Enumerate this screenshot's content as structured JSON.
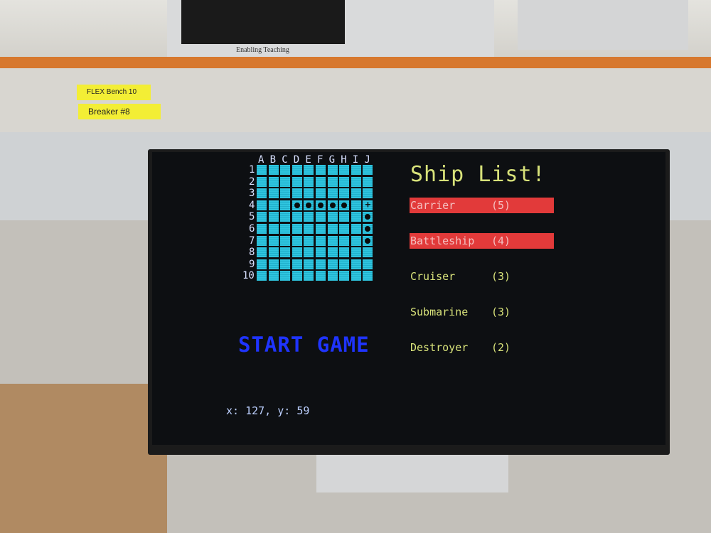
{
  "environment": {
    "shelf_labels": [
      "FLEX Bench 10",
      "Breaker #8"
    ],
    "oscilloscope_caption": "Enabling Teaching"
  },
  "game": {
    "grid": {
      "columns": [
        "A",
        "B",
        "C",
        "D",
        "E",
        "F",
        "G",
        "H",
        "I",
        "J"
      ],
      "rows": [
        "1",
        "2",
        "3",
        "4",
        "5",
        "6",
        "7",
        "8",
        "9",
        "10"
      ],
      "ship_cells": [
        "D4",
        "E4",
        "F4",
        "G4",
        "H4",
        "J5",
        "J6",
        "J7"
      ],
      "cursor_cell": "J4",
      "cell_color": "#2fc4de"
    },
    "ship_list": {
      "title": "Ship List!",
      "ships": [
        {
          "name": "Carrier",
          "size": "(5)",
          "placed": true
        },
        {
          "name": "Battleship",
          "size": "(4)",
          "placed": true
        },
        {
          "name": "Cruiser",
          "size": "(3)",
          "placed": false
        },
        {
          "name": "Submarine",
          "size": "(3)",
          "placed": false
        },
        {
          "name": "Destroyer",
          "size": "(2)",
          "placed": false
        }
      ],
      "text_color": "#d8e27a",
      "placed_color": "#e23a3a"
    },
    "start_button": {
      "label": "START GAME",
      "color": "#1f34ff"
    },
    "cursor_readout": "x: 127, y: 59"
  }
}
